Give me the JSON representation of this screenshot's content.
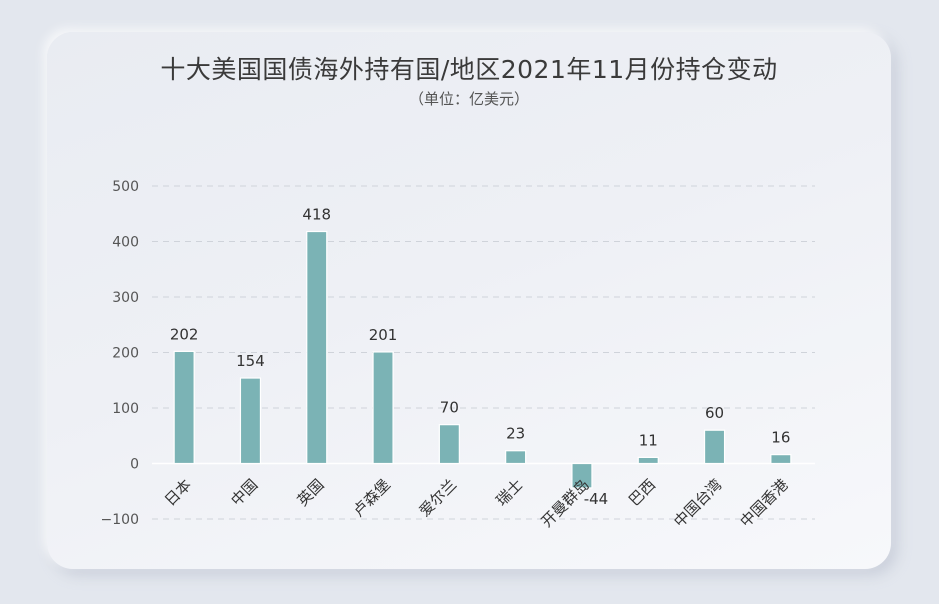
{
  "title": "十大美国国债海外持有国/地区2021年11月份持仓变动",
  "subtitle": "（单位：亿美元）",
  "colors": {
    "bar": "#7bb3b5",
    "grid": "#cfd3da",
    "axis_text": "#555555",
    "label_text": "#333333"
  },
  "chart_data": {
    "type": "bar",
    "title": "十大美国国债海外持有国/地区2021年11月份持仓变动",
    "subtitle": "（单位：亿美元）",
    "xlabel": "",
    "ylabel": "",
    "categories": [
      "日本",
      "中国",
      "英国",
      "卢森堡",
      "爱尔兰",
      "瑞士",
      "开曼群岛",
      "巴西",
      "中国台湾",
      "中国香港"
    ],
    "values": [
      202,
      154,
      418,
      201,
      70,
      23,
      -44,
      11,
      60,
      16
    ],
    "ylim": [
      -100,
      500
    ],
    "yticks": [
      500,
      400,
      300,
      200,
      100,
      0,
      -100
    ],
    "grid": true,
    "legend": "none"
  }
}
